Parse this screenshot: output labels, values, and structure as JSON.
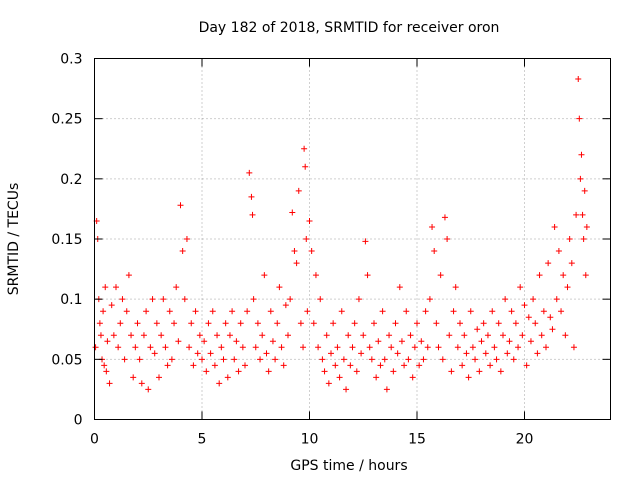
{
  "chart_data": {
    "type": "scatter",
    "title": "Day 182 of 2018, SRMTID for receiver oron",
    "xlabel": "GPS time / hours",
    "ylabel": "SRMTID / TECUs",
    "xlim": [
      0,
      24
    ],
    "ylim": [
      0,
      0.3
    ],
    "xticks": [
      0,
      5,
      10,
      15,
      20
    ],
    "xtick_labels": [
      "0",
      "5",
      "10",
      "15",
      "20"
    ],
    "yticks": [
      0,
      0.05,
      0.1,
      0.15,
      0.2,
      0.25,
      0.3
    ],
    "ytick_labels": [
      "0",
      "0.05",
      "0.1",
      "0.15",
      "0.2",
      "0.25",
      "0.3"
    ],
    "grid": true,
    "marker": "plus",
    "color": "#ff0000",
    "series": [
      {
        "name": "SRMTID",
        "x": [
          0.05,
          0.1,
          0.15,
          0.2,
          0.25,
          0.3,
          0.35,
          0.4,
          0.45,
          0.5,
          0.55,
          0.6,
          0.7,
          0.8,
          0.9,
          1.0,
          1.1,
          1.2,
          1.3,
          1.4,
          1.5,
          1.6,
          1.7,
          1.8,
          1.9,
          2.0,
          2.1,
          2.2,
          2.3,
          2.4,
          2.5,
          2.6,
          2.7,
          2.8,
          2.9,
          3.0,
          3.1,
          3.2,
          3.3,
          3.4,
          3.5,
          3.6,
          3.7,
          3.8,
          3.9,
          4.0,
          4.1,
          4.2,
          4.3,
          4.4,
          4.5,
          4.6,
          4.7,
          4.8,
          4.9,
          5.0,
          5.1,
          5.2,
          5.3,
          5.4,
          5.5,
          5.6,
          5.7,
          5.8,
          5.9,
          6.0,
          6.1,
          6.2,
          6.3,
          6.4,
          6.5,
          6.6,
          6.7,
          6.8,
          6.9,
          7.0,
          7.1,
          7.2,
          7.3,
          7.35,
          7.4,
          7.5,
          7.6,
          7.7,
          7.8,
          7.9,
          8.0,
          8.1,
          8.2,
          8.3,
          8.4,
          8.5,
          8.6,
          8.7,
          8.8,
          8.9,
          9.0,
          9.1,
          9.2,
          9.3,
          9.4,
          9.5,
          9.6,
          9.7,
          9.75,
          9.8,
          9.85,
          9.9,
          10.0,
          10.1,
          10.2,
          10.3,
          10.4,
          10.5,
          10.6,
          10.7,
          10.8,
          10.9,
          11.0,
          11.1,
          11.2,
          11.3,
          11.4,
          11.5,
          11.6,
          11.7,
          11.8,
          11.9,
          12.0,
          12.1,
          12.2,
          12.3,
          12.4,
          12.5,
          12.6,
          12.7,
          12.8,
          12.9,
          13.0,
          13.1,
          13.2,
          13.3,
          13.4,
          13.5,
          13.6,
          13.7,
          13.8,
          13.9,
          14.0,
          14.1,
          14.2,
          14.3,
          14.4,
          14.5,
          14.6,
          14.7,
          14.8,
          14.9,
          15.0,
          15.1,
          15.2,
          15.3,
          15.4,
          15.5,
          15.6,
          15.7,
          15.8,
          15.9,
          16.0,
          16.1,
          16.2,
          16.3,
          16.4,
          16.5,
          16.6,
          16.7,
          16.8,
          16.9,
          17.0,
          17.1,
          17.2,
          17.3,
          17.4,
          17.5,
          17.6,
          17.7,
          17.8,
          17.9,
          18.0,
          18.1,
          18.2,
          18.3,
          18.4,
          18.5,
          18.6,
          18.7,
          18.8,
          18.9,
          19.0,
          19.1,
          19.2,
          19.3,
          19.4,
          19.5,
          19.6,
          19.7,
          19.8,
          19.9,
          20.0,
          20.1,
          20.2,
          20.3,
          20.4,
          20.5,
          20.6,
          20.7,
          20.8,
          20.9,
          21.0,
          21.1,
          21.2,
          21.3,
          21.4,
          21.5,
          21.6,
          21.7,
          21.8,
          21.9,
          22.0,
          22.1,
          22.2,
          22.3,
          22.4,
          22.5,
          22.55,
          22.6,
          22.65,
          22.7,
          22.75,
          22.8,
          22.85,
          22.9
        ],
        "y": [
          0.06,
          0.165,
          0.15,
          0.1,
          0.08,
          0.07,
          0.05,
          0.09,
          0.045,
          0.11,
          0.04,
          0.065,
          0.03,
          0.095,
          0.07,
          0.11,
          0.06,
          0.08,
          0.1,
          0.05,
          0.09,
          0.12,
          0.07,
          0.035,
          0.06,
          0.08,
          0.05,
          0.03,
          0.07,
          0.09,
          0.025,
          0.06,
          0.1,
          0.055,
          0.08,
          0.035,
          0.07,
          0.1,
          0.06,
          0.045,
          0.09,
          0.05,
          0.08,
          0.11,
          0.065,
          0.178,
          0.14,
          0.1,
          0.15,
          0.06,
          0.08,
          0.045,
          0.09,
          0.055,
          0.07,
          0.05,
          0.065,
          0.04,
          0.08,
          0.055,
          0.09,
          0.045,
          0.07,
          0.03,
          0.06,
          0.05,
          0.08,
          0.035,
          0.07,
          0.09,
          0.05,
          0.065,
          0.04,
          0.08,
          0.06,
          0.045,
          0.09,
          0.205,
          0.185,
          0.17,
          0.1,
          0.06,
          0.08,
          0.05,
          0.07,
          0.12,
          0.055,
          0.04,
          0.09,
          0.065,
          0.05,
          0.08,
          0.11,
          0.06,
          0.045,
          0.095,
          0.07,
          0.1,
          0.172,
          0.14,
          0.13,
          0.19,
          0.08,
          0.06,
          0.225,
          0.21,
          0.15,
          0.09,
          0.165,
          0.14,
          0.08,
          0.12,
          0.06,
          0.1,
          0.05,
          0.04,
          0.07,
          0.03,
          0.055,
          0.08,
          0.045,
          0.06,
          0.035,
          0.09,
          0.05,
          0.025,
          0.07,
          0.045,
          0.06,
          0.08,
          0.04,
          0.1,
          0.055,
          0.07,
          0.148,
          0.12,
          0.06,
          0.05,
          0.08,
          0.035,
          0.065,
          0.045,
          0.09,
          0.05,
          0.025,
          0.07,
          0.06,
          0.04,
          0.08,
          0.055,
          0.11,
          0.065,
          0.045,
          0.09,
          0.05,
          0.07,
          0.035,
          0.06,
          0.08,
          0.045,
          0.065,
          0.05,
          0.09,
          0.06,
          0.1,
          0.16,
          0.14,
          0.08,
          0.06,
          0.12,
          0.05,
          0.168,
          0.15,
          0.07,
          0.04,
          0.09,
          0.11,
          0.06,
          0.08,
          0.045,
          0.07,
          0.055,
          0.035,
          0.09,
          0.06,
          0.05,
          0.075,
          0.04,
          0.065,
          0.08,
          0.055,
          0.07,
          0.045,
          0.09,
          0.06,
          0.05,
          0.08,
          0.04,
          0.07,
          0.1,
          0.055,
          0.065,
          0.09,
          0.05,
          0.08,
          0.06,
          0.11,
          0.07,
          0.095,
          0.045,
          0.085,
          0.065,
          0.1,
          0.08,
          0.055,
          0.12,
          0.07,
          0.09,
          0.06,
          0.13,
          0.085,
          0.075,
          0.16,
          0.1,
          0.14,
          0.09,
          0.12,
          0.07,
          0.11,
          0.15,
          0.13,
          0.06,
          0.17,
          0.283,
          0.25,
          0.2,
          0.22,
          0.17,
          0.15,
          0.19,
          0.12,
          0.16
        ]
      }
    ]
  }
}
